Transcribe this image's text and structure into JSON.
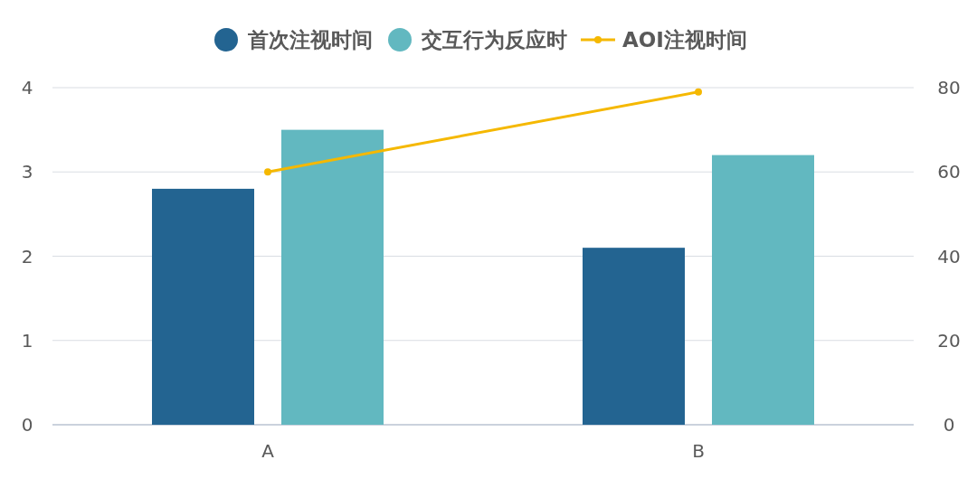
{
  "chart_data": {
    "type": "bar",
    "categories": [
      "A",
      "B"
    ],
    "series": [
      {
        "name": "首次注视时间",
        "color": "#236491",
        "values": [
          2.8,
          2.1
        ]
      },
      {
        "name": "交互行为反应时",
        "color": "#62b8c0",
        "values": [
          3.5,
          3.2
        ]
      },
      {
        "name": "AOI注视时间",
        "color": "#f5b800",
        "values": [
          60,
          79
        ],
        "type": "line",
        "axis": "y2",
        "marker": "circle"
      }
    ],
    "ylim": [
      0,
      4
    ],
    "yticks": [
      0,
      1,
      2,
      3,
      4
    ],
    "y2lim": [
      0,
      80
    ],
    "y2ticks": [
      0,
      20,
      40,
      60,
      80
    ],
    "grid": "y",
    "legend": "top"
  }
}
